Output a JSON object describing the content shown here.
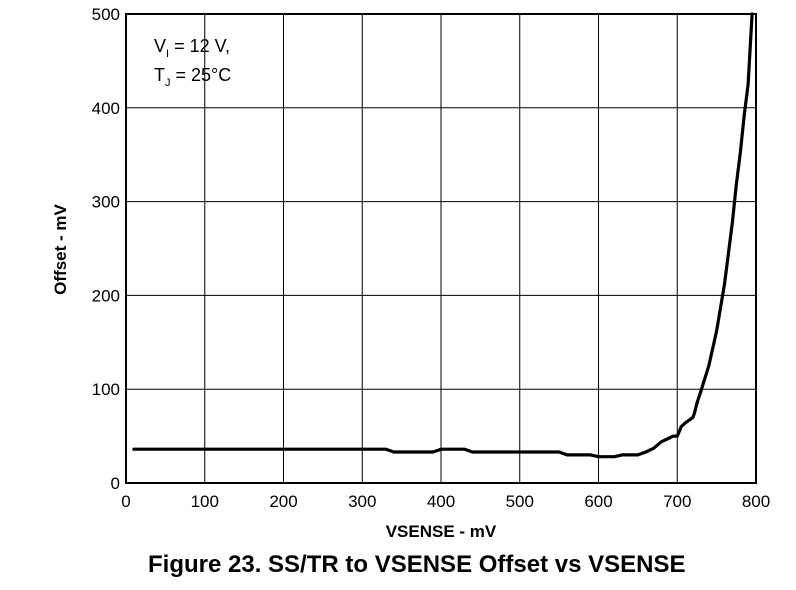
{
  "caption": "Figure 23. SS/TR to VSENSE Offset vs VSENSE",
  "chart_data": {
    "type": "line",
    "xlabel": "VSENSE - mV",
    "ylabel": "Offset - mV",
    "xlim": [
      0,
      800
    ],
    "ylim": [
      0,
      500
    ],
    "xticks": [
      0,
      100,
      200,
      300,
      400,
      500,
      600,
      700,
      800
    ],
    "yticks": [
      0,
      100,
      200,
      300,
      400,
      500
    ],
    "grid": true,
    "annotation": {
      "line1_main": "V",
      "line1_sub": "I",
      "line1_rest": " = 12 V,",
      "line2_main": "T",
      "line2_sub": "J",
      "line2_rest": " = 25°C"
    },
    "series": [
      {
        "color": "#000000",
        "x": [
          10,
          100,
          200,
          300,
          330,
          340,
          390,
          400,
          430,
          440,
          500,
          550,
          560,
          590,
          600,
          620,
          630,
          650,
          660,
          670,
          680,
          690,
          695,
          700,
          705,
          710,
          715,
          720,
          722,
          725,
          730,
          740,
          750,
          760,
          770,
          775,
          780,
          785,
          790,
          793,
          795
        ],
        "y": [
          36,
          36,
          36,
          36,
          36,
          33,
          33,
          36,
          36,
          33,
          33,
          33,
          30,
          30,
          28,
          28,
          30,
          30,
          33,
          37,
          44,
          48,
          50,
          50,
          60,
          64,
          67,
          70,
          75,
          85,
          98,
          125,
          162,
          212,
          278,
          318,
          352,
          392,
          425,
          470,
          500
        ]
      }
    ]
  }
}
